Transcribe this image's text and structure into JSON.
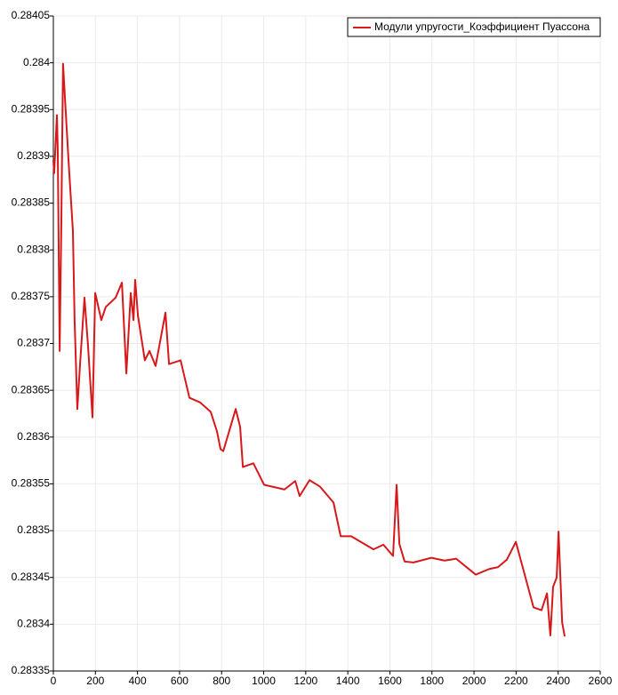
{
  "chart_data": {
    "type": "line",
    "series": [
      {
        "name": "Модули упругости_Коэффициент Пуассона",
        "color": "#d7191c",
        "x": [
          0,
          4,
          13,
          17,
          21,
          30,
          38,
          46,
          55,
          72,
          93,
          101,
          114,
          127,
          148,
          165,
          186,
          199,
          228,
          249,
          296,
          326,
          347,
          368,
          381,
          389,
          402,
          435,
          457,
          486,
          533,
          550,
          605,
          647,
          698,
          748,
          778,
          795,
          808,
          867,
          888,
          901,
          951,
          1002,
          1099,
          1150,
          1171,
          1218,
          1268,
          1332,
          1366,
          1416,
          1522,
          1569,
          1615,
          1632,
          1645,
          1670,
          1712,
          1797,
          1860,
          1915,
          2008,
          2072,
          2114,
          2156,
          2199,
          2254,
          2283,
          2321,
          2347,
          2363,
          2376,
          2393,
          2402,
          2419,
          2431
        ],
        "values": [
          0.283896,
          0.283882,
          0.283925,
          0.283944,
          0.283906,
          0.283692,
          0.28383,
          0.283999,
          0.283963,
          0.283896,
          0.28382,
          0.283725,
          0.28363,
          0.283678,
          0.283749,
          0.283697,
          0.283621,
          0.283754,
          0.283725,
          0.283739,
          0.283749,
          0.283765,
          0.283668,
          0.283754,
          0.283725,
          0.283768,
          0.28373,
          0.283682,
          0.283692,
          0.283676,
          0.283733,
          0.283678,
          0.283682,
          0.283642,
          0.283637,
          0.283627,
          0.283606,
          0.283587,
          0.283585,
          0.28363,
          0.283611,
          0.283568,
          0.283572,
          0.283549,
          0.283544,
          0.283553,
          0.283537,
          0.283554,
          0.283547,
          0.28353,
          0.283494,
          0.283494,
          0.28348,
          0.283485,
          0.283473,
          0.283549,
          0.283486,
          0.283467,
          0.283466,
          0.283471,
          0.283468,
          0.28347,
          0.283453,
          0.283459,
          0.283461,
          0.283469,
          0.283488,
          0.283442,
          0.283418,
          0.283415,
          0.283433,
          0.283388,
          0.28344,
          0.28345,
          0.283499,
          0.283402,
          0.283387
        ]
      }
    ],
    "xlim": [
      0,
      2600
    ],
    "xticks": [
      0,
      200,
      400,
      600,
      800,
      1000,
      1200,
      1400,
      1600,
      1800,
      2000,
      2200,
      2400,
      2600
    ],
    "ylim": [
      0.28335,
      0.28405
    ],
    "yticks": [
      0.28335,
      0.2834,
      0.28345,
      0.2835,
      0.28355,
      0.2836,
      0.28365,
      0.2837,
      0.28375,
      0.2838,
      0.28385,
      0.2839,
      0.28395,
      0.284,
      0.28405
    ],
    "grid": true,
    "legend": "top-right"
  }
}
